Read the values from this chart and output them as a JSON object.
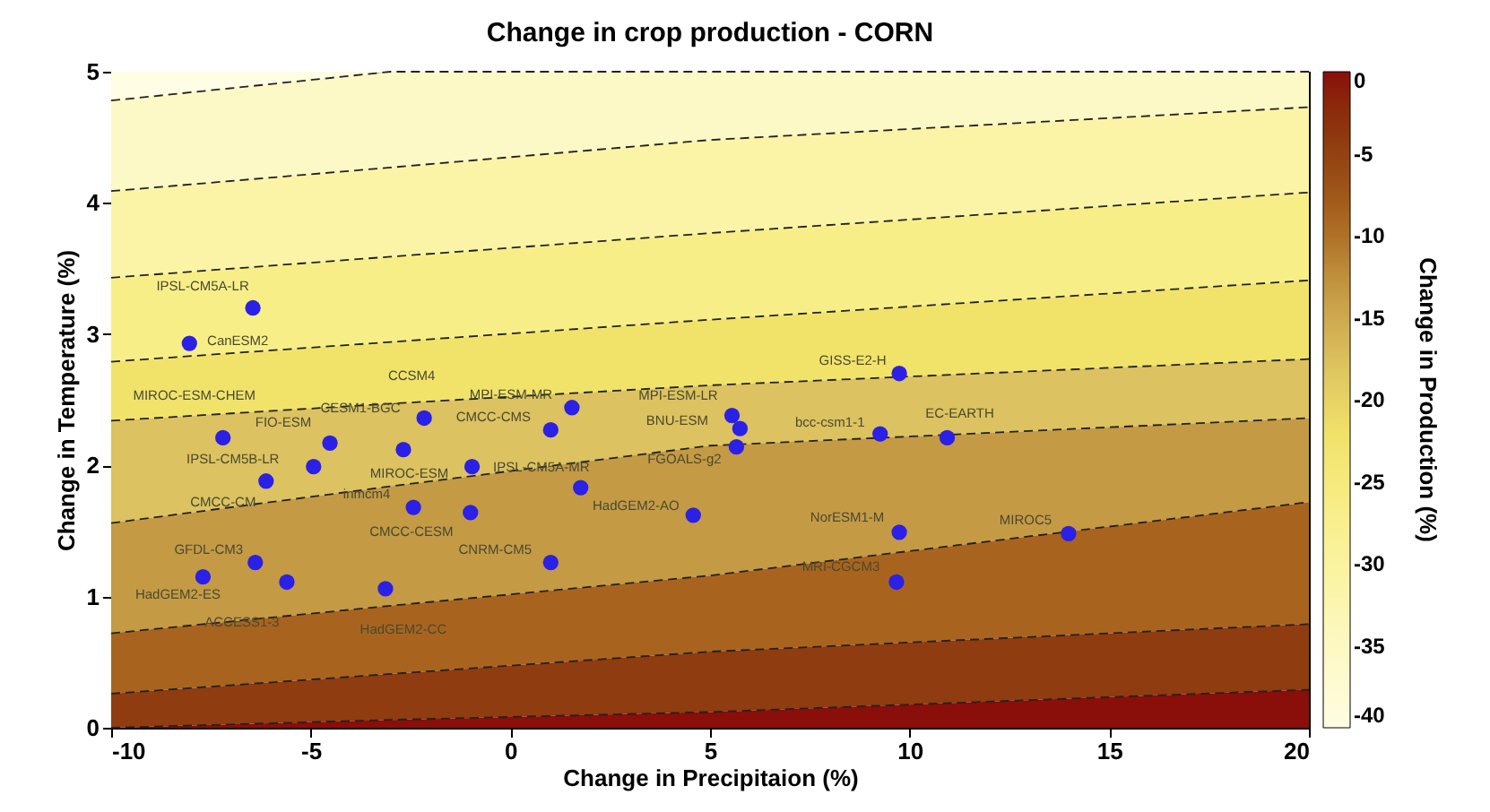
{
  "chart_data": {
    "type": "scatter",
    "title": "Change in crop production - CORN",
    "xlabel": "Change in Precipitaion (%)",
    "ylabel": "Change in Temperature (%)",
    "clabel": "Change in Production (%)",
    "xlim": [
      -10,
      20
    ],
    "ylim": [
      0,
      5
    ],
    "xticks": [
      -10,
      -5,
      0,
      5,
      10,
      15,
      20
    ],
    "yticks": [
      0,
      1,
      2,
      3,
      4,
      5
    ],
    "clim": [
      -40,
      0
    ],
    "cticks": [
      -40,
      -35,
      -30,
      -25,
      -20,
      -15,
      -10,
      -5,
      0
    ],
    "series": [
      {
        "type": "area",
        "color": "#fffde3",
        "x": [
          -10,
          -3,
          5,
          20
        ],
        "values": [
          5,
          5,
          5,
          5
        ]
      },
      {
        "type": "area",
        "color": "#fdf9c6",
        "line_style": "dashed",
        "x": [
          -10,
          -3,
          5,
          20
        ],
        "values": [
          4.78,
          5.0,
          5.0,
          5.0
        ]
      },
      {
        "type": "area",
        "color": "#fbf4a6",
        "line_style": "dashed",
        "x": [
          -10,
          -3,
          5,
          20
        ],
        "values": [
          4.09,
          4.27,
          4.48,
          4.73
        ]
      },
      {
        "type": "area",
        "color": "#f8ee88",
        "line_style": "dashed",
        "x": [
          -10,
          -3,
          5,
          20
        ],
        "values": [
          3.43,
          3.59,
          3.77,
          4.08
        ]
      },
      {
        "type": "area",
        "color": "#f1e36a",
        "line_style": "dashed",
        "x": [
          -10,
          -3,
          5,
          20
        ],
        "values": [
          2.79,
          2.94,
          3.11,
          3.41
        ]
      },
      {
        "type": "area",
        "color": "#dcc260",
        "line_style": "dashed",
        "x": [
          -10,
          -3,
          5,
          20
        ],
        "values": [
          2.34,
          2.47,
          2.61,
          2.81
        ]
      },
      {
        "type": "area",
        "color": "#c49a45",
        "line_style": "dashed",
        "x": [
          -10,
          -3,
          5,
          20
        ],
        "values": [
          1.56,
          1.84,
          2.15,
          2.36
        ]
      },
      {
        "type": "area",
        "color": "#a8641f",
        "line_style": "dashed",
        "x": [
          -10,
          -3,
          5,
          20
        ],
        "values": [
          0.72,
          0.93,
          1.16,
          1.72
        ]
      },
      {
        "type": "area",
        "color": "#8e3c10",
        "line_style": "dashed",
        "x": [
          -10,
          -3,
          5,
          20
        ],
        "values": [
          0.26,
          0.41,
          0.58,
          0.79
        ]
      },
      {
        "type": "area",
        "color": "#8a0e0a",
        "line_style": "dashed",
        "x": [
          -10,
          -3,
          5,
          20
        ],
        "values": [
          0.0,
          0.06,
          0.12,
          0.29
        ]
      },
      {
        "color": "#2b20e6",
        "marker": "circle",
        "x": [
          -6.45,
          -8.04,
          -7.2,
          -4.52,
          -2.16,
          -2.68,
          -4.93,
          -6.12,
          -0.96,
          1.01,
          1.54,
          1.76,
          -2.43,
          -1.0,
          4.58,
          -6.39,
          -7.7,
          -5.6,
          -3.13,
          1.01,
          5.55,
          5.75,
          5.66,
          9.26,
          10.94,
          9.74,
          13.98,
          9.67,
          9.74
        ],
        "values": [
          3.2,
          2.93,
          2.21,
          2.17,
          2.36,
          2.12,
          1.99,
          1.88,
          1.99,
          2.27,
          2.44,
          1.83,
          1.68,
          1.64,
          1.62,
          1.26,
          1.15,
          1.11,
          1.06,
          1.26,
          2.38,
          2.28,
          2.14,
          2.24,
          2.21,
          1.49,
          1.48,
          1.11,
          2.7
        ]
      }
    ],
    "annotations": [
      {
        "text": "IPSL-CM5A-LR",
        "x": -6.45,
        "y": 3.2
      },
      {
        "text": "CanESM2",
        "x": -8.04,
        "y": 2.93
      },
      {
        "text": "MIROC-ESM-CHEM",
        "x": -7.2,
        "y": 2.21
      },
      {
        "text": "FIO-ESM",
        "x": -4.52,
        "y": 2.17
      },
      {
        "text": "CCSM4",
        "x": -2.16,
        "y": 2.36
      },
      {
        "text": "CESM1-BGC",
        "x": -2.68,
        "y": 2.12
      },
      {
        "text": "IPSL-CM5B-LR",
        "x": -4.93,
        "y": 1.99
      },
      {
        "text": "CMCC-CM",
        "x": -6.12,
        "y": 1.88
      },
      {
        "text": "MIROC-ESM",
        "x": -0.96,
        "y": 1.99
      },
      {
        "text": "CMCC-CMS",
        "x": 1.01,
        "y": 2.27
      },
      {
        "text": "MPI-ESM-MR",
        "x": 1.54,
        "y": 2.44
      },
      {
        "text": "IPSL-CM5A-MR",
        "x": 1.76,
        "y": 1.83
      },
      {
        "text": "inmcm4",
        "x": -2.43,
        "y": 1.68
      },
      {
        "text": "CMCC-CESM",
        "x": -1.0,
        "y": 1.64
      },
      {
        "text": "HadGEM2-AO",
        "x": 4.58,
        "y": 1.62
      },
      {
        "text": "GFDL-CM3",
        "x": -6.39,
        "y": 1.26
      },
      {
        "text": "HadGEM2-ES",
        "x": -7.7,
        "y": 1.15
      },
      {
        "text": "ACCESS1-3",
        "x": -5.6,
        "y": 1.11
      },
      {
        "text": "HadGEM2-CC",
        "x": -3.13,
        "y": 1.06
      },
      {
        "text": "CNRM-CM5",
        "x": 1.01,
        "y": 1.26
      },
      {
        "text": "MPI-ESM-LR",
        "x": 5.55,
        "y": 2.38
      },
      {
        "text": "BNU-ESM",
        "x": 5.75,
        "y": 2.28
      },
      {
        "text": "FGOALS-g2",
        "x": 5.66,
        "y": 2.14
      },
      {
        "text": "bcc-csm1-1",
        "x": 9.26,
        "y": 2.24
      },
      {
        "text": "EC-EARTH",
        "x": 10.94,
        "y": 2.21
      },
      {
        "text": "NorESM1-M",
        "x": 9.74,
        "y": 1.49
      },
      {
        "text": "MIROC5",
        "x": 13.98,
        "y": 1.48
      },
      {
        "text": "MRI-CGCM3",
        "x": 9.67,
        "y": 1.11
      },
      {
        "text": "GISS-E2-H",
        "x": 9.74,
        "y": 2.7
      }
    ]
  }
}
